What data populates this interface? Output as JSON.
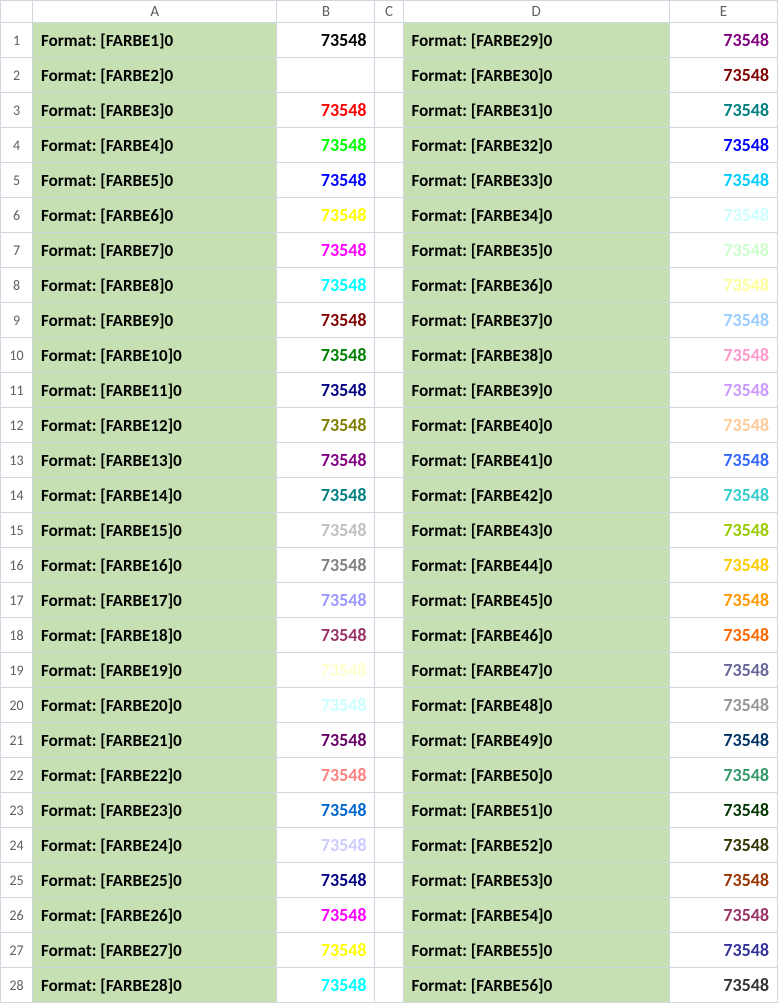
{
  "columns": [
    "A",
    "B",
    "C",
    "D",
    "E"
  ],
  "value_text": "73548",
  "label_prefix": "Format: [FARBE",
  "label_suffix": "]0",
  "label_bg": "#c6e0b4",
  "grid_color": "#d0d7de",
  "blank_value_rows": [
    2
  ],
  "rows": [
    {
      "n": 1,
      "left": {
        "farbe": 1,
        "color": "#000000"
      },
      "right": {
        "farbe": 29,
        "color": "#800080"
      }
    },
    {
      "n": 2,
      "left": {
        "farbe": 2,
        "color": "#ffffff"
      },
      "right": {
        "farbe": 30,
        "color": "#800000"
      }
    },
    {
      "n": 3,
      "left": {
        "farbe": 3,
        "color": "#ff0000"
      },
      "right": {
        "farbe": 31,
        "color": "#008080"
      }
    },
    {
      "n": 4,
      "left": {
        "farbe": 4,
        "color": "#00ff00"
      },
      "right": {
        "farbe": 32,
        "color": "#0000ff"
      }
    },
    {
      "n": 5,
      "left": {
        "farbe": 5,
        "color": "#0000ff"
      },
      "right": {
        "farbe": 33,
        "color": "#00ccff"
      }
    },
    {
      "n": 6,
      "left": {
        "farbe": 6,
        "color": "#ffff00"
      },
      "right": {
        "farbe": 34,
        "color": "#ccffff"
      }
    },
    {
      "n": 7,
      "left": {
        "farbe": 7,
        "color": "#ff00ff"
      },
      "right": {
        "farbe": 35,
        "color": "#ccffcc"
      }
    },
    {
      "n": 8,
      "left": {
        "farbe": 8,
        "color": "#00ffff"
      },
      "right": {
        "farbe": 36,
        "color": "#ffff99"
      }
    },
    {
      "n": 9,
      "left": {
        "farbe": 9,
        "color": "#800000"
      },
      "right": {
        "farbe": 37,
        "color": "#99ccff"
      }
    },
    {
      "n": 10,
      "left": {
        "farbe": 10,
        "color": "#008000"
      },
      "right": {
        "farbe": 38,
        "color": "#ff99cc"
      }
    },
    {
      "n": 11,
      "left": {
        "farbe": 11,
        "color": "#000080"
      },
      "right": {
        "farbe": 39,
        "color": "#cc99ff"
      }
    },
    {
      "n": 12,
      "left": {
        "farbe": 12,
        "color": "#808000"
      },
      "right": {
        "farbe": 40,
        "color": "#ffcc99"
      }
    },
    {
      "n": 13,
      "left": {
        "farbe": 13,
        "color": "#800080"
      },
      "right": {
        "farbe": 41,
        "color": "#3366ff"
      }
    },
    {
      "n": 14,
      "left": {
        "farbe": 14,
        "color": "#008080"
      },
      "right": {
        "farbe": 42,
        "color": "#33cccc"
      }
    },
    {
      "n": 15,
      "left": {
        "farbe": 15,
        "color": "#c0c0c0"
      },
      "right": {
        "farbe": 43,
        "color": "#99cc00"
      }
    },
    {
      "n": 16,
      "left": {
        "farbe": 16,
        "color": "#808080"
      },
      "right": {
        "farbe": 44,
        "color": "#ffcc00"
      }
    },
    {
      "n": 17,
      "left": {
        "farbe": 17,
        "color": "#9999ff"
      },
      "right": {
        "farbe": 45,
        "color": "#ff9900"
      }
    },
    {
      "n": 18,
      "left": {
        "farbe": 18,
        "color": "#993366"
      },
      "right": {
        "farbe": 46,
        "color": "#ff6600"
      }
    },
    {
      "n": 19,
      "left": {
        "farbe": 19,
        "color": "#ffffcc"
      },
      "right": {
        "farbe": 47,
        "color": "#666699"
      }
    },
    {
      "n": 20,
      "left": {
        "farbe": 20,
        "color": "#ccffff"
      },
      "right": {
        "farbe": 48,
        "color": "#969696"
      }
    },
    {
      "n": 21,
      "left": {
        "farbe": 21,
        "color": "#660066"
      },
      "right": {
        "farbe": 49,
        "color": "#003366"
      }
    },
    {
      "n": 22,
      "left": {
        "farbe": 22,
        "color": "#ff8080"
      },
      "right": {
        "farbe": 50,
        "color": "#339966"
      }
    },
    {
      "n": 23,
      "left": {
        "farbe": 23,
        "color": "#0066cc"
      },
      "right": {
        "farbe": 51,
        "color": "#003300"
      }
    },
    {
      "n": 24,
      "left": {
        "farbe": 24,
        "color": "#ccccff"
      },
      "right": {
        "farbe": 52,
        "color": "#333300"
      }
    },
    {
      "n": 25,
      "left": {
        "farbe": 25,
        "color": "#000080"
      },
      "right": {
        "farbe": 53,
        "color": "#993300"
      }
    },
    {
      "n": 26,
      "left": {
        "farbe": 26,
        "color": "#ff00ff"
      },
      "right": {
        "farbe": 54,
        "color": "#993366"
      }
    },
    {
      "n": 27,
      "left": {
        "farbe": 27,
        "color": "#ffff00"
      },
      "right": {
        "farbe": 55,
        "color": "#333399"
      }
    },
    {
      "n": 28,
      "left": {
        "farbe": 28,
        "color": "#00ffff"
      },
      "right": {
        "farbe": 56,
        "color": "#333333"
      }
    }
  ]
}
